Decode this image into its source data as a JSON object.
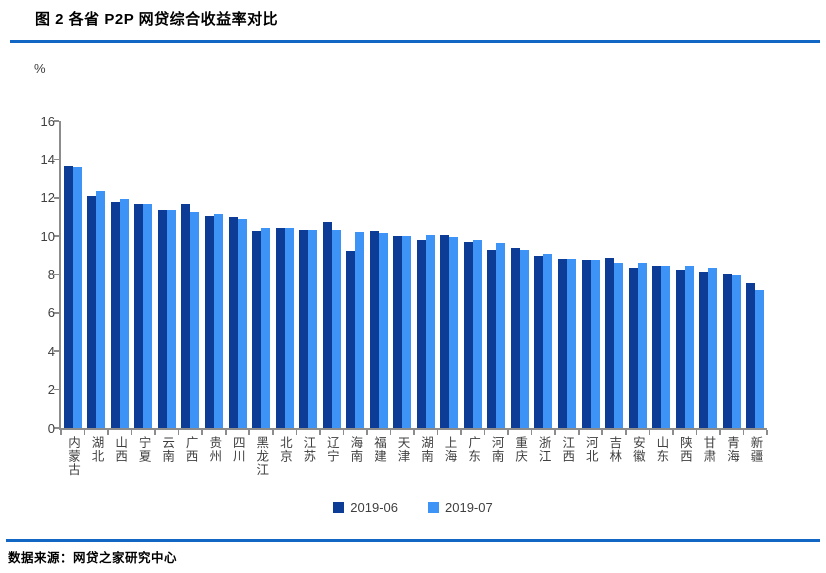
{
  "header": {
    "title": "图 2  各省 P2P 网贷综合收益率对比"
  },
  "chart_data": {
    "type": "bar",
    "title": "各省P2P网贷综合收益率对比",
    "unit_label": "%",
    "xlabel": "",
    "ylabel": "%",
    "ylim": [
      0,
      16
    ],
    "ytick_step": 2,
    "ytick_labels": [
      "0",
      "2",
      "4",
      "6",
      "8",
      "10",
      "12",
      "14",
      "16"
    ],
    "grid": false,
    "legend_position": "bottom",
    "categories": [
      "内蒙古",
      "湖北",
      "山西",
      "宁夏",
      "云南",
      "广西",
      "贵州",
      "四川",
      "黑龙江",
      "北京",
      "江苏",
      "辽宁",
      "海南",
      "福建",
      "天津",
      "湖南",
      "上海",
      "广东",
      "河南",
      "重庆",
      "浙江",
      "江西",
      "河北",
      "吉林",
      "安徽",
      "山东",
      "陕西",
      "甘肃",
      "青海",
      "新疆"
    ],
    "series": [
      {
        "name": "2019-06",
        "color": "#0D3C96",
        "values": [
          13.65,
          12.1,
          11.8,
          11.7,
          11.35,
          11.7,
          11.05,
          11.0,
          10.25,
          10.4,
          10.3,
          10.75,
          9.25,
          10.25,
          10.0,
          9.8,
          10.05,
          9.7,
          9.3,
          9.4,
          8.95,
          8.8,
          8.75,
          8.85,
          8.35,
          8.45,
          8.25,
          8.15,
          8.05,
          7.55
        ]
      },
      {
        "name": "2019-07",
        "color": "#3E93F7",
        "values": [
          13.6,
          12.35,
          11.95,
          11.7,
          11.35,
          11.25,
          11.15,
          10.9,
          10.45,
          10.45,
          10.3,
          10.3,
          10.2,
          10.15,
          10.0,
          10.05,
          9.95,
          9.8,
          9.65,
          9.3,
          9.05,
          8.8,
          8.75,
          8.6,
          8.6,
          8.45,
          8.45,
          8.35,
          7.95,
          7.2
        ]
      }
    ]
  },
  "footer": {
    "source": "数据来源：网贷之家研究中心"
  },
  "colors": {
    "rule_blue": "#1266C4",
    "axis_gray": "#8c8c8c",
    "label_gray": "#3f3f3f"
  }
}
